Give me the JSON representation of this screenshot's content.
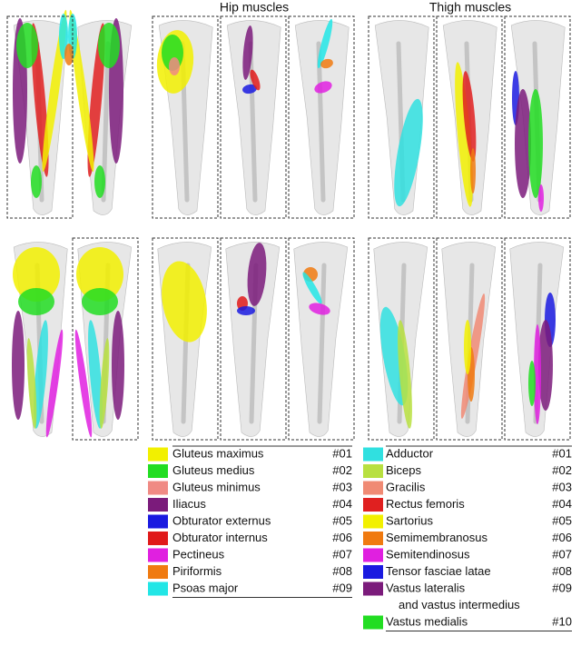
{
  "headers": {
    "hip": "Hip muscles",
    "thigh": "Thigh muscles"
  },
  "hip_legend": [
    {
      "name": "Gluteus maximus",
      "code": "#01",
      "color": "#f2f000"
    },
    {
      "name": "Gluteus medius",
      "code": "#02",
      "color": "#22dd22"
    },
    {
      "name": "Gluteus minimus",
      "code": "#03",
      "color": "#f08a84"
    },
    {
      "name": "Iliacus",
      "code": "#04",
      "color": "#7b1b7b"
    },
    {
      "name": "Obturator externus",
      "code": "#05",
      "color": "#1a1ae0"
    },
    {
      "name": "Obturator internus",
      "code": "#06",
      "color": "#e01a1a"
    },
    {
      "name": "Pectineus",
      "code": "#07",
      "color": "#e020e0"
    },
    {
      "name": "Piriformis",
      "code": "#08",
      "color": "#f07a10"
    },
    {
      "name": "Psoas major",
      "code": "#09",
      "color": "#22e6e6"
    }
  ],
  "thigh_legend": [
    {
      "name": "Adductor",
      "code": "#01",
      "color": "#30e0e0"
    },
    {
      "name": "Biceps",
      "code": "#02",
      "color": "#b8e040"
    },
    {
      "name": "Gracilis",
      "code": "#03",
      "color": "#f08a74"
    },
    {
      "name": "Rectus femoris",
      "code": "#04",
      "color": "#e02020"
    },
    {
      "name": "Sartorius",
      "code": "#05",
      "color": "#f2f000"
    },
    {
      "name": "Semimembranosus",
      "code": "#06",
      "color": "#f07a10"
    },
    {
      "name": "Semitendinosus",
      "code": "#07",
      "color": "#e020e0"
    },
    {
      "name": "Tensor fasciae latae",
      "code": "#08",
      "color": "#1a1ae0"
    },
    {
      "name": "Vastus lateralis",
      "name_continued": "and vastus intermedius",
      "code": "#09",
      "color": "#7b1b7b"
    },
    {
      "name": "Vastus medialis",
      "code": "#10",
      "color": "#22dd22"
    }
  ]
}
